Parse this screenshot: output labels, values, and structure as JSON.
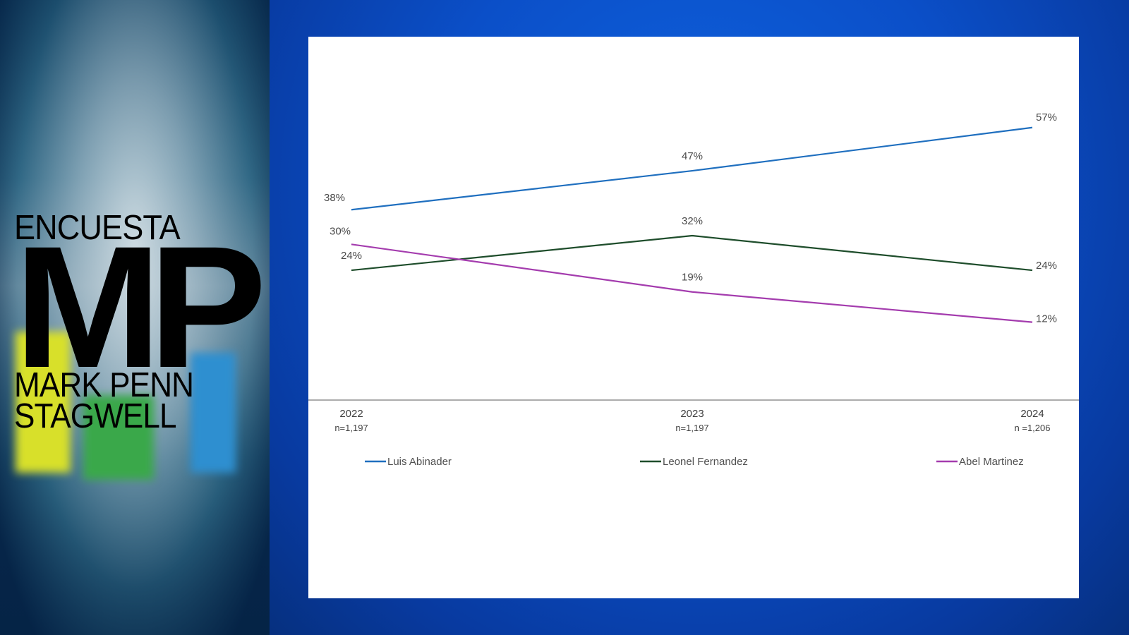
{
  "branding": {
    "top_text": "ENCUESTA",
    "logo_letters": "MP",
    "line1": "MARK PENN",
    "line2": "STAGWELL"
  },
  "colors": {
    "background_blue": "#0b4fc8",
    "series_luis": "#1f6fbf",
    "series_leonel": "#1e4d2b",
    "series_abel": "#a43cae"
  },
  "chart_data": {
    "type": "line",
    "x": [
      "2022",
      "2023",
      "2024"
    ],
    "sample_sizes": [
      "n=1,197",
      "n=1,197",
      "n =1,206"
    ],
    "series": [
      {
        "name": "Luis Abinader",
        "values": [
          38,
          47,
          57
        ],
        "labels": [
          "38%",
          "47%",
          "57%"
        ],
        "color": "#1f6fbf"
      },
      {
        "name": "Leonel Fernandez",
        "values": [
          24,
          32,
          24
        ],
        "labels": [
          "24%",
          "32%",
          "24%"
        ],
        "color": "#1e4d2b"
      },
      {
        "name": "Abel Martinez",
        "values": [
          30,
          19,
          12
        ],
        "labels": [
          "30%",
          "19%",
          "12%"
        ],
        "color": "#a43cae"
      }
    ],
    "ylim": [
      -6,
      78
    ],
    "grid": false,
    "legend_position": "bottom"
  }
}
